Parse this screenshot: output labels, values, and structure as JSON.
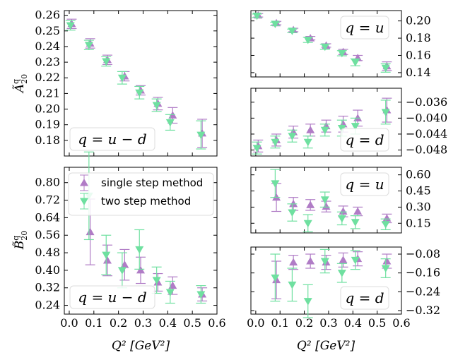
{
  "colors": {
    "single": "#b07cc6",
    "two": "#6fe0a0"
  },
  "legend": {
    "single": "single step method",
    "two": "two step method"
  },
  "x_axis_label": "Q² [GeV²]",
  "x_ticks": [
    "0.0",
    "0.1",
    "0.2",
    "0.3",
    "0.4",
    "0.5",
    "0.6"
  ],
  "chart_data": [
    {
      "type": "scatter",
      "panel": "A-umd",
      "ylabel": "Ã^q_20",
      "annotation": "q = u − d",
      "xlim": [
        -0.02,
        0.6
      ],
      "ylim": [
        0.17,
        0.263
      ],
      "yticks": [
        "0.18",
        "0.19",
        "0.20",
        "0.21",
        "0.22",
        "0.23",
        "0.24",
        "0.25",
        "0.26"
      ],
      "series": [
        {
          "name": "single step method",
          "marker": "triangle-up",
          "x": [
            0.01,
            0.085,
            0.155,
            0.225,
            0.29,
            0.36,
            0.42,
            0.54
          ],
          "y": [
            0.2545,
            0.242,
            0.2315,
            0.221,
            0.212,
            0.2035,
            0.196,
            0.1845
          ],
          "err": [
            0.003,
            0.003,
            0.003,
            0.003,
            0.003,
            0.004,
            0.005,
            0.009
          ]
        },
        {
          "name": "two step method",
          "marker": "triangle-down",
          "x": [
            0.005,
            0.08,
            0.15,
            0.215,
            0.285,
            0.355,
            0.41,
            0.535
          ],
          "y": [
            0.2535,
            0.241,
            0.2305,
            0.22,
            0.2105,
            0.2025,
            0.1915,
            0.1835
          ],
          "err": [
            0.003,
            0.003,
            0.003,
            0.004,
            0.004,
            0.004,
            0.005,
            0.009
          ]
        }
      ]
    },
    {
      "type": "scatter",
      "panel": "A-u",
      "annotation": "q = u",
      "xlim": [
        -0.02,
        0.6
      ],
      "ylim": [
        0.135,
        0.212
      ],
      "yticks": [
        "0.14",
        "0.16",
        "0.18",
        "0.20"
      ],
      "series": [
        {
          "name": "single step method",
          "marker": "triangle-up",
          "x": [
            0.01,
            0.085,
            0.155,
            0.225,
            0.29,
            0.36,
            0.42,
            0.54
          ],
          "y": [
            0.2065,
            0.1975,
            0.1895,
            0.18,
            0.1715,
            0.164,
            0.157,
            0.1475
          ],
          "err": [
            0.002,
            0.002,
            0.002,
            0.002,
            0.002,
            0.003,
            0.003,
            0.005
          ]
        },
        {
          "name": "two step method",
          "marker": "triangle-down",
          "x": [
            0.005,
            0.08,
            0.15,
            0.215,
            0.285,
            0.355,
            0.41,
            0.535
          ],
          "y": [
            0.206,
            0.1965,
            0.1885,
            0.178,
            0.17,
            0.1625,
            0.152,
            0.1455
          ],
          "err": [
            0.002,
            0.002,
            0.002,
            0.003,
            0.003,
            0.003,
            0.004,
            0.005
          ]
        }
      ]
    },
    {
      "type": "scatter",
      "panel": "A-d",
      "annotation": "q = d",
      "xlim": [
        -0.02,
        0.6
      ],
      "ylim": [
        -0.0495,
        -0.0325
      ],
      "yticks": [
        "−0.048",
        "−0.044",
        "−0.040",
        "−0.036"
      ],
      "series": [
        {
          "name": "single step method",
          "marker": "triangle-up",
          "x": [
            0.01,
            0.085,
            0.155,
            0.225,
            0.29,
            0.36,
            0.42,
            0.54
          ],
          "y": [
            -0.047,
            -0.0455,
            -0.0435,
            -0.043,
            -0.042,
            -0.0415,
            -0.04,
            -0.038
          ],
          "err": [
            0.0015,
            0.0015,
            0.0015,
            0.0015,
            0.0015,
            0.002,
            0.002,
            0.003
          ]
        },
        {
          "name": "two step method",
          "marker": "triangle-down",
          "x": [
            0.005,
            0.08,
            0.15,
            0.215,
            0.285,
            0.355,
            0.41,
            0.535
          ],
          "y": [
            -0.0475,
            -0.046,
            -0.0445,
            -0.046,
            -0.043,
            -0.0425,
            -0.042,
            -0.0385
          ],
          "err": [
            0.0015,
            0.0015,
            0.0015,
            0.0015,
            0.0015,
            0.002,
            0.002,
            0.003
          ]
        }
      ]
    },
    {
      "type": "scatter",
      "panel": "B-umd",
      "ylabel": "B̃^q_20",
      "annotation": "q = u − d",
      "xlim": [
        -0.02,
        0.6
      ],
      "ylim": [
        0.2,
        0.87
      ],
      "yticks": [
        "0.24",
        "0.32",
        "0.40",
        "0.48",
        "0.56",
        "0.64",
        "0.72",
        "0.80"
      ],
      "legend_location": "upper-left",
      "series": [
        {
          "name": "single step method",
          "marker": "triangle-up",
          "x": [
            0.085,
            0.155,
            0.225,
            0.29,
            0.36,
            0.42,
            0.54
          ],
          "y": [
            0.575,
            0.445,
            0.425,
            0.4,
            0.345,
            0.33,
            0.29
          ],
          "err": [
            0.15,
            0.07,
            0.07,
            0.06,
            0.04,
            0.04,
            0.03
          ]
        },
        {
          "name": "two step method",
          "marker": "triangle-down",
          "x": [
            0.08,
            0.15,
            0.215,
            0.285,
            0.355,
            0.41,
            0.535
          ],
          "y": [
            0.74,
            0.47,
            0.4,
            0.495,
            0.355,
            0.3,
            0.29
          ],
          "err": [
            0.2,
            0.09,
            0.08,
            0.09,
            0.06,
            0.05,
            0.04
          ]
        }
      ]
    },
    {
      "type": "scatter",
      "panel": "B-u",
      "annotation": "q = u",
      "xlim": [
        -0.02,
        0.6
      ],
      "ylim": [
        0.06,
        0.67
      ],
      "yticks": [
        "0.15",
        "0.30",
        "0.45",
        "0.60"
      ],
      "series": [
        {
          "name": "single step method",
          "marker": "triangle-up",
          "x": [
            0.085,
            0.155,
            0.225,
            0.29,
            0.36,
            0.42,
            0.54
          ],
          "y": [
            0.39,
            0.33,
            0.32,
            0.305,
            0.26,
            0.26,
            0.195
          ],
          "err": [
            0.13,
            0.06,
            0.05,
            0.05,
            0.05,
            0.04,
            0.04
          ]
        },
        {
          "name": "two step method",
          "marker": "triangle-down",
          "x": [
            0.08,
            0.15,
            0.215,
            0.285,
            0.355,
            0.41,
            0.535
          ],
          "y": [
            0.52,
            0.25,
            0.15,
            0.37,
            0.195,
            0.16,
            0.14
          ],
          "err": [
            0.13,
            0.08,
            0.08,
            0.07,
            0.06,
            0.06,
            0.05
          ]
        }
      ]
    },
    {
      "type": "scatter",
      "panel": "B-d",
      "annotation": "q = d",
      "xlim": [
        -0.02,
        0.6
      ],
      "ylim": [
        -0.335,
        -0.05
      ],
      "yticks": [
        "−0.32",
        "−0.24",
        "−0.16",
        "−0.08"
      ],
      "series": [
        {
          "name": "single step method",
          "marker": "triangle-up",
          "x": [
            0.085,
            0.155,
            0.225,
            0.29,
            0.36,
            0.42,
            0.54
          ],
          "y": [
            -0.19,
            -0.115,
            -0.11,
            -0.115,
            -0.105,
            -0.1,
            -0.11
          ],
          "err": [
            0.08,
            0.03,
            0.03,
            0.03,
            0.03,
            0.03,
            0.03
          ]
        },
        {
          "name": "two step method",
          "marker": "triangle-down",
          "x": [
            0.08,
            0.15,
            0.215,
            0.285,
            0.355,
            0.41,
            0.535
          ],
          "y": [
            -0.18,
            -0.21,
            -0.28,
            -0.11,
            -0.16,
            -0.105,
            -0.14
          ],
          "err": [
            0.1,
            0.07,
            0.07,
            0.05,
            0.04,
            0.04,
            0.04
          ]
        }
      ]
    }
  ]
}
